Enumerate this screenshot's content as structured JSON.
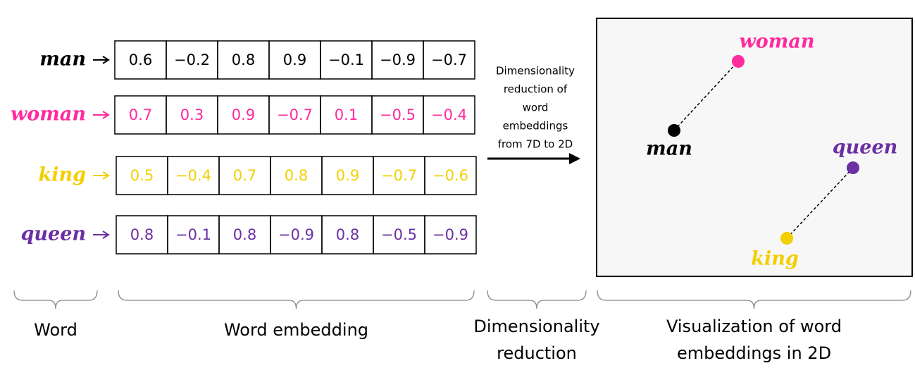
{
  "rows": [
    {
      "word": "man",
      "color": "#000000",
      "values": [
        "0.6",
        "−0.2",
        "0.8",
        "0.9",
        "−0.1",
        "−0.9",
        "−0.7"
      ]
    },
    {
      "word": "woman",
      "color": "#ff2a9d",
      "values": [
        "0.7",
        "0.3",
        "0.9",
        "−0.7",
        "0.1",
        "−0.5",
        "−0.4"
      ]
    },
    {
      "word": "king",
      "color": "#f2cf00",
      "values": [
        "0.5",
        "−0.4",
        "0.7",
        "0.8",
        "0.9",
        "−0.7",
        "−0.6"
      ]
    },
    {
      "word": "queen",
      "color": "#6b2fa3",
      "values": [
        "0.8",
        "−0.1",
        "0.8",
        "−0.9",
        "0.8",
        "−0.5",
        "−0.9"
      ]
    }
  ],
  "reduction_note": [
    "Dimensionality",
    "reduction of",
    "word",
    "embeddings",
    "from 7D to 2D"
  ],
  "captions": [
    {
      "lines": [
        "Word"
      ]
    },
    {
      "lines": [
        "Word embedding"
      ]
    },
    {
      "lines": [
        "Dimensionality",
        "reduction"
      ]
    },
    {
      "lines": [
        "Visualization of word",
        "embeddings  in 2D"
      ]
    }
  ]
}
